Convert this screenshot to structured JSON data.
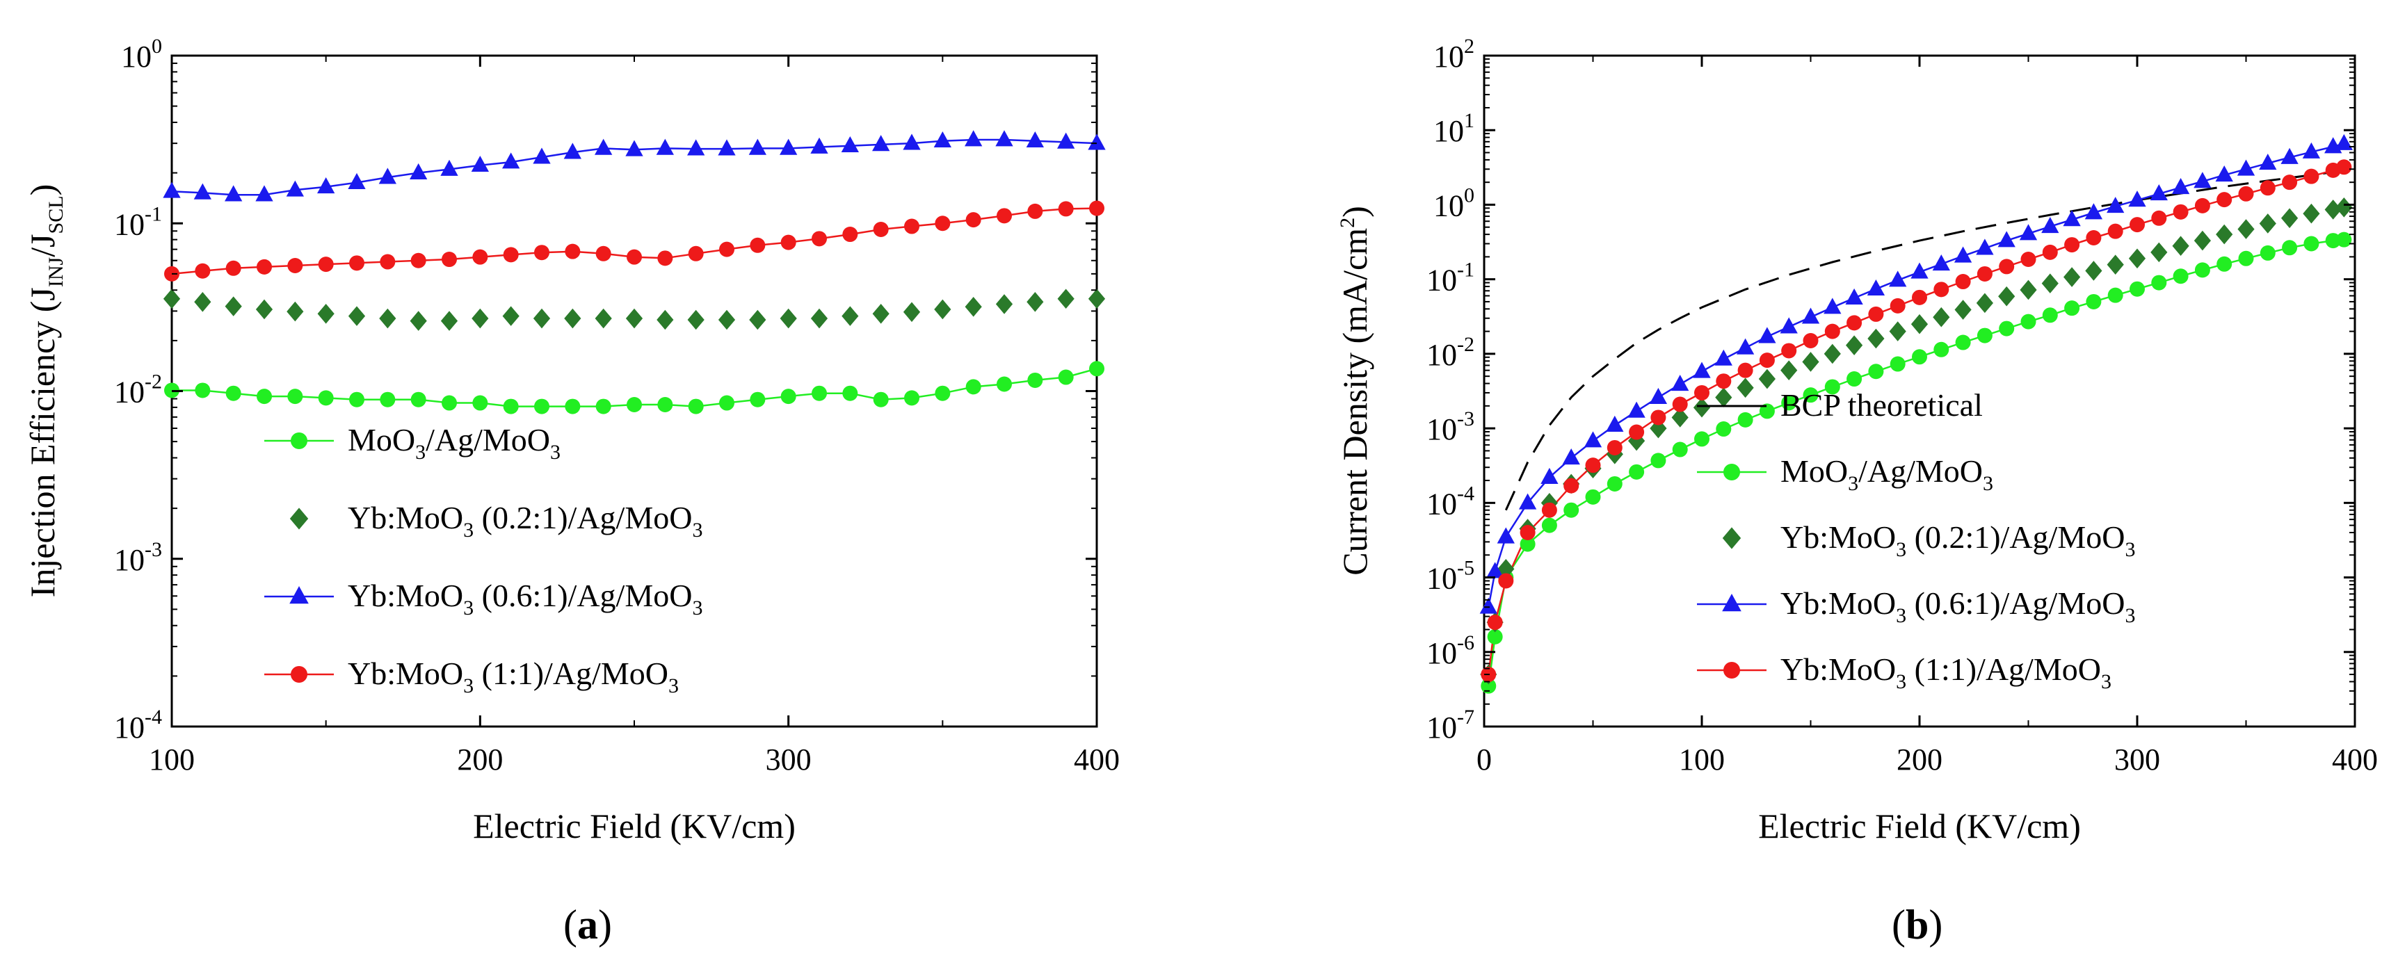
{
  "chart_data": [
    {
      "panel": "a",
      "type": "line",
      "caption": {
        "open": "(",
        "letter": "a",
        "close": ")"
      },
      "xlabel": "Electric Field (KV/cm)",
      "ylabel": {
        "prefix": "Injection Efficiency (J",
        "sub1": "INJ",
        "mid": "/J",
        "sub2": "SCL",
        "suffix": ")"
      },
      "xlim": [
        100,
        400
      ],
      "ylim_log": [
        -4,
        0
      ],
      "xticks": [
        100,
        200,
        300,
        400
      ],
      "xtick_labels": [
        "100",
        "200",
        "300",
        "400"
      ],
      "yticks": [
        -4,
        -3,
        -2,
        -1,
        0
      ],
      "series": [
        {
          "name": "MoO3/Ag/MoO3",
          "legend": {
            "p1": "MoO",
            "s1": "3",
            "p2": "/Ag/MoO",
            "s2": "3"
          },
          "color": "#22ee22",
          "marker": "circle",
          "line": true,
          "x": [
            100,
            110,
            120,
            130,
            140,
            150,
            160,
            170,
            180,
            190,
            200,
            210,
            220,
            230,
            240,
            250,
            260,
            270,
            280,
            290,
            300,
            310,
            320,
            330,
            340,
            350,
            360,
            370,
            380,
            390,
            400
          ],
          "y": [
            0.0101,
            0.0101,
            0.0097,
            0.0093,
            0.0093,
            0.0091,
            0.0089,
            0.0089,
            0.0089,
            0.0085,
            0.0085,
            0.0081,
            0.0081,
            0.0081,
            0.0081,
            0.0083,
            0.0083,
            0.0081,
            0.0085,
            0.0089,
            0.0093,
            0.0097,
            0.0097,
            0.0089,
            0.0091,
            0.0097,
            0.0106,
            0.011,
            0.0116,
            0.0121,
            0.0136
          ]
        },
        {
          "name": "Yb:MoO3 (0.2:1)/Ag/MoO3",
          "legend": {
            "p1": "Yb:MoO",
            "s1": "3",
            "p2": " (0.2:1)/Ag/MoO",
            "s2": "3"
          },
          "color": "#2a7a2a",
          "marker": "diamond",
          "line": false,
          "x": [
            100,
            110,
            120,
            130,
            140,
            150,
            160,
            170,
            180,
            190,
            200,
            210,
            220,
            230,
            240,
            250,
            260,
            270,
            280,
            290,
            300,
            310,
            320,
            330,
            340,
            350,
            360,
            370,
            380,
            390,
            400
          ],
          "y": [
            0.0355,
            0.034,
            0.032,
            0.0307,
            0.0298,
            0.0289,
            0.028,
            0.0271,
            0.0262,
            0.0262,
            0.0271,
            0.028,
            0.0271,
            0.0271,
            0.0271,
            0.0271,
            0.0266,
            0.0266,
            0.0266,
            0.0266,
            0.0271,
            0.0271,
            0.028,
            0.0289,
            0.0296,
            0.0307,
            0.0318,
            0.033,
            0.034,
            0.0355,
            0.0355
          ]
        },
        {
          "name": "Yb:MoO3 (0.6:1)/Ag/MoO3",
          "legend": {
            "p1": "Yb:MoO",
            "s1": "3",
            "p2": " (0.6:1)/Ag/MoO",
            "s2": "3"
          },
          "color": "#1a1aee",
          "marker": "triangle",
          "line": true,
          "x": [
            100,
            110,
            120,
            130,
            140,
            150,
            160,
            170,
            180,
            190,
            200,
            210,
            220,
            230,
            240,
            250,
            260,
            270,
            280,
            290,
            300,
            310,
            320,
            330,
            340,
            350,
            360,
            370,
            380,
            390,
            400
          ],
          "y": [
            0.155,
            0.152,
            0.148,
            0.148,
            0.158,
            0.165,
            0.175,
            0.188,
            0.2,
            0.21,
            0.222,
            0.232,
            0.248,
            0.265,
            0.28,
            0.275,
            0.28,
            0.278,
            0.278,
            0.28,
            0.28,
            0.285,
            0.29,
            0.295,
            0.3,
            0.31,
            0.315,
            0.315,
            0.31,
            0.305,
            0.3
          ]
        },
        {
          "name": "Yb:MoO3 (1:1)/Ag/MoO3",
          "legend": {
            "p1": "Yb:MoO",
            "s1": "3",
            "p2": " (1:1)/Ag/MoO",
            "s2": "3"
          },
          "color": "#ee1a1a",
          "marker": "circle",
          "line": true,
          "x": [
            100,
            110,
            120,
            130,
            140,
            150,
            160,
            170,
            180,
            190,
            200,
            210,
            220,
            230,
            240,
            250,
            260,
            270,
            280,
            290,
            300,
            310,
            320,
            330,
            340,
            350,
            360,
            370,
            380,
            390,
            400
          ],
          "y": [
            0.05,
            0.052,
            0.054,
            0.055,
            0.056,
            0.057,
            0.058,
            0.059,
            0.06,
            0.061,
            0.063,
            0.065,
            0.067,
            0.068,
            0.066,
            0.063,
            0.062,
            0.066,
            0.07,
            0.074,
            0.077,
            0.081,
            0.086,
            0.092,
            0.096,
            0.1,
            0.105,
            0.111,
            0.118,
            0.122,
            0.123
          ]
        }
      ]
    },
    {
      "panel": "b",
      "type": "line",
      "caption": {
        "open": "(",
        "letter": "b",
        "close": ")"
      },
      "xlabel": "Electric Field (KV/cm)",
      "ylabel": {
        "prefix": "Current Density (mA/cm",
        "sup": "2",
        "suffix": ")"
      },
      "xlim": [
        0,
        400
      ],
      "ylim_log": [
        -7,
        2
      ],
      "xticks": [
        0,
        100,
        200,
        300,
        400
      ],
      "xtick_labels": [
        "0",
        "100",
        "200",
        "300",
        "400"
      ],
      "yticks": [
        -7,
        -6,
        -5,
        -4,
        -3,
        -2,
        -1,
        0,
        1,
        2
      ],
      "theory": {
        "name": "BCP theoretical",
        "x": [
          10,
          20,
          30,
          40,
          50,
          60,
          70,
          80,
          90,
          100,
          120,
          140,
          160,
          180,
          200,
          220,
          240,
          260,
          280,
          300,
          320,
          340,
          360,
          380,
          400
        ],
        "y": [
          8e-05,
          0.00035,
          0.0011,
          0.0026,
          0.005,
          0.0085,
          0.014,
          0.021,
          0.03,
          0.042,
          0.073,
          0.115,
          0.17,
          0.24,
          0.33,
          0.44,
          0.57,
          0.73,
          0.92,
          1.15,
          1.42,
          1.75,
          2.1,
          2.5,
          3.0
        ]
      },
      "series": [
        {
          "name": "MoO3/Ag/MoO3",
          "legend": {
            "p1": "MoO",
            "s1": "3",
            "p2": "/Ag/MoO",
            "s2": "3"
          },
          "color": "#22ee22",
          "marker": "circle",
          "line": true,
          "x": [
            2,
            5,
            10,
            20,
            30,
            40,
            50,
            60,
            70,
            80,
            90,
            100,
            110,
            120,
            130,
            140,
            150,
            160,
            170,
            180,
            190,
            200,
            210,
            220,
            230,
            240,
            250,
            260,
            270,
            280,
            290,
            300,
            310,
            320,
            330,
            340,
            350,
            360,
            370,
            380,
            390,
            395
          ],
          "y": [
            3.5e-07,
            1.6e-06,
            1e-05,
            2.8e-05,
            5e-05,
            8e-05,
            0.00012,
            0.00018,
            0.00026,
            0.00037,
            0.00052,
            0.00072,
            0.00098,
            0.0013,
            0.0017,
            0.0022,
            0.0028,
            0.0036,
            0.0046,
            0.0058,
            0.0073,
            0.0091,
            0.0114,
            0.0142,
            0.0176,
            0.0218,
            0.027,
            0.033,
            0.041,
            0.05,
            0.061,
            0.074,
            0.09,
            0.11,
            0.133,
            0.16,
            0.19,
            0.225,
            0.265,
            0.3,
            0.33,
            0.34
          ]
        },
        {
          "name": "Yb:MoO3 (0.2:1)/Ag/MoO3",
          "legend": {
            "p1": "Yb:MoO",
            "s1": "3",
            "p2": " (0.2:1)/Ag/MoO",
            "s2": "3"
          },
          "color": "#2a7a2a",
          "marker": "diamond",
          "line": false,
          "x": [
            2,
            5,
            10,
            20,
            30,
            40,
            50,
            60,
            70,
            80,
            90,
            100,
            110,
            120,
            130,
            140,
            150,
            160,
            170,
            180,
            190,
            200,
            210,
            220,
            230,
            240,
            250,
            260,
            270,
            280,
            290,
            300,
            310,
            320,
            330,
            340,
            350,
            360,
            370,
            380,
            390,
            395
          ],
          "y": [
            5e-07,
            2.5e-06,
            1.3e-05,
            4.5e-05,
            0.0001,
            0.00018,
            0.00029,
            0.00045,
            0.00068,
            0.001,
            0.0014,
            0.0019,
            0.0026,
            0.0035,
            0.0046,
            0.006,
            0.0078,
            0.01,
            0.013,
            0.016,
            0.02,
            0.025,
            0.031,
            0.039,
            0.048,
            0.059,
            0.072,
            0.088,
            0.107,
            0.13,
            0.157,
            0.19,
            0.23,
            0.28,
            0.33,
            0.4,
            0.47,
            0.56,
            0.66,
            0.76,
            0.86,
            0.92
          ]
        },
        {
          "name": "Yb:MoO3 (0.6:1)/Ag/MoO3",
          "legend": {
            "p1": "Yb:MoO",
            "s1": "3",
            "p2": " (0.6:1)/Ag/MoO",
            "s2": "3"
          },
          "color": "#1a1aee",
          "marker": "triangle",
          "line": true,
          "x": [
            2,
            5,
            10,
            20,
            30,
            40,
            50,
            60,
            70,
            80,
            90,
            100,
            110,
            120,
            130,
            140,
            150,
            160,
            170,
            180,
            190,
            200,
            210,
            220,
            230,
            240,
            250,
            260,
            270,
            280,
            290,
            300,
            310,
            320,
            330,
            340,
            350,
            360,
            370,
            380,
            390,
            395
          ],
          "y": [
            4e-06,
            1.2e-05,
            3.5e-05,
            0.0001,
            0.00022,
            0.0004,
            0.00068,
            0.0011,
            0.0017,
            0.0026,
            0.0039,
            0.0058,
            0.0085,
            0.012,
            0.017,
            0.023,
            0.031,
            0.042,
            0.056,
            0.074,
            0.097,
            0.125,
            0.16,
            0.205,
            0.26,
            0.33,
            0.41,
            0.51,
            0.63,
            0.78,
            0.95,
            1.15,
            1.4,
            1.7,
            2.05,
            2.5,
            3.0,
            3.6,
            4.3,
            5.1,
            6.0,
            6.6
          ]
        },
        {
          "name": "Yb:MoO3 (1:1)/Ag/MoO3",
          "legend": {
            "p1": "Yb:MoO",
            "s1": "3",
            "p2": " (1:1)/Ag/MoO",
            "s2": "3"
          },
          "color": "#ee1a1a",
          "marker": "circle",
          "line": true,
          "x": [
            2,
            5,
            10,
            20,
            30,
            40,
            50,
            60,
            70,
            80,
            90,
            100,
            110,
            120,
            130,
            140,
            150,
            160,
            170,
            180,
            190,
            200,
            210,
            220,
            230,
            240,
            250,
            260,
            270,
            280,
            290,
            300,
            310,
            320,
            330,
            340,
            350,
            360,
            370,
            380,
            390,
            395
          ],
          "y": [
            5e-07,
            2.5e-06,
            9e-06,
            4e-05,
            8e-05,
            0.00017,
            0.00032,
            0.00055,
            0.00089,
            0.0014,
            0.0021,
            0.003,
            0.0043,
            0.006,
            0.0082,
            0.011,
            0.015,
            0.02,
            0.026,
            0.034,
            0.044,
            0.057,
            0.073,
            0.093,
            0.118,
            0.148,
            0.185,
            0.23,
            0.29,
            0.36,
            0.44,
            0.54,
            0.66,
            0.8,
            0.97,
            1.17,
            1.4,
            1.68,
            2.0,
            2.4,
            2.9,
            3.2
          ]
        }
      ]
    }
  ]
}
